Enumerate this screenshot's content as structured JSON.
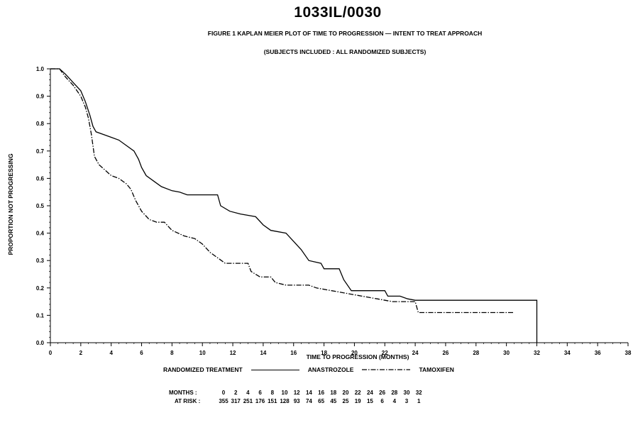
{
  "chart_data": {
    "type": "line",
    "title": "1033IL/0030",
    "subtitle": "FIGURE 1  KAPLAN MEIER PLOT OF TIME TO PROGRESSION  —  INTENT TO TREAT APPROACH",
    "subtitle2": "(SUBJECTS INCLUDED : ALL RANDOMIZED SUBJECTS)",
    "xlabel": "TIME TO PROGRESSION (MONTHS)",
    "ylabel": "PROPORTION NOT PROGRESSING",
    "xlim": [
      0,
      38
    ],
    "ylim": [
      0.0,
      1.0
    ],
    "x_ticks": [
      "0",
      "2",
      "4",
      "6",
      "8",
      "10",
      "12",
      "14",
      "16",
      "18",
      "20",
      "22",
      "24",
      "26",
      "28",
      "30",
      "32",
      "34",
      "36",
      "38"
    ],
    "y_ticks": [
      "0.0",
      "0.1",
      "0.2",
      "0.3",
      "0.4",
      "0.5",
      "0.6",
      "0.7",
      "0.8",
      "0.9",
      "1.0"
    ],
    "legend_title": "RANDOMIZED TREATMENT",
    "series": [
      {
        "name": "ANASTROZOLE",
        "line_style": "solid",
        "color": "#000000",
        "points": [
          [
            0,
            1.0
          ],
          [
            0.6,
            1.0
          ],
          [
            1.0,
            0.98
          ],
          [
            1.5,
            0.95
          ],
          [
            2.0,
            0.92
          ],
          [
            2.3,
            0.88
          ],
          [
            2.6,
            0.83
          ],
          [
            2.8,
            0.79
          ],
          [
            3.0,
            0.77
          ],
          [
            3.5,
            0.76
          ],
          [
            4.0,
            0.75
          ],
          [
            4.5,
            0.74
          ],
          [
            5.0,
            0.72
          ],
          [
            5.5,
            0.7
          ],
          [
            5.8,
            0.67
          ],
          [
            6.0,
            0.64
          ],
          [
            6.3,
            0.61
          ],
          [
            6.8,
            0.59
          ],
          [
            7.3,
            0.57
          ],
          [
            8.0,
            0.555
          ],
          [
            8.5,
            0.55
          ],
          [
            9.0,
            0.54
          ],
          [
            10.0,
            0.54
          ],
          [
            11.0,
            0.54
          ],
          [
            11.2,
            0.5
          ],
          [
            11.8,
            0.48
          ],
          [
            12.5,
            0.47
          ],
          [
            13.5,
            0.46
          ],
          [
            14.0,
            0.43
          ],
          [
            14.5,
            0.41
          ],
          [
            15.5,
            0.4
          ],
          [
            16.0,
            0.37
          ],
          [
            16.5,
            0.34
          ],
          [
            17.0,
            0.3
          ],
          [
            17.8,
            0.29
          ],
          [
            18.0,
            0.27
          ],
          [
            19.0,
            0.27
          ],
          [
            19.3,
            0.23
          ],
          [
            19.8,
            0.19
          ],
          [
            20.5,
            0.19
          ],
          [
            22.0,
            0.19
          ],
          [
            22.2,
            0.17
          ],
          [
            23.0,
            0.17
          ],
          [
            23.5,
            0.16
          ],
          [
            24.0,
            0.155
          ],
          [
            25.0,
            0.155
          ],
          [
            32.0,
            0.155
          ],
          [
            32.0,
            0.0
          ]
        ]
      },
      {
        "name": "TAMOXIFEN",
        "line_style": "dash-dot",
        "color": "#000000",
        "points": [
          [
            0,
            1.0
          ],
          [
            0.6,
            1.0
          ],
          [
            1.0,
            0.97
          ],
          [
            1.5,
            0.94
          ],
          [
            2.0,
            0.9
          ],
          [
            2.3,
            0.86
          ],
          [
            2.5,
            0.82
          ],
          [
            2.7,
            0.76
          ],
          [
            2.9,
            0.68
          ],
          [
            3.2,
            0.65
          ],
          [
            3.6,
            0.63
          ],
          [
            4.0,
            0.61
          ],
          [
            4.5,
            0.6
          ],
          [
            5.0,
            0.58
          ],
          [
            5.3,
            0.56
          ],
          [
            5.6,
            0.52
          ],
          [
            6.0,
            0.48
          ],
          [
            6.5,
            0.45
          ],
          [
            7.0,
            0.44
          ],
          [
            7.5,
            0.44
          ],
          [
            8.0,
            0.41
          ],
          [
            8.8,
            0.39
          ],
          [
            9.5,
            0.38
          ],
          [
            10.0,
            0.36
          ],
          [
            10.5,
            0.33
          ],
          [
            11.0,
            0.31
          ],
          [
            11.5,
            0.29
          ],
          [
            12.0,
            0.29
          ],
          [
            13.0,
            0.29
          ],
          [
            13.2,
            0.26
          ],
          [
            13.8,
            0.24
          ],
          [
            14.5,
            0.24
          ],
          [
            14.8,
            0.22
          ],
          [
            15.5,
            0.21
          ],
          [
            16.0,
            0.21
          ],
          [
            17.0,
            0.21
          ],
          [
            17.5,
            0.2
          ],
          [
            18.5,
            0.19
          ],
          [
            19.5,
            0.18
          ],
          [
            20.5,
            0.17
          ],
          [
            21.5,
            0.16
          ],
          [
            22.5,
            0.15
          ],
          [
            24.0,
            0.15
          ],
          [
            24.2,
            0.11
          ],
          [
            26.0,
            0.11
          ],
          [
            30.5,
            0.11
          ]
        ]
      }
    ],
    "at_risk": {
      "months_label": "MONTHS",
      "at_risk_label": "AT RISK",
      "months": [
        "0",
        "2",
        "4",
        "6",
        "8",
        "10",
        "12",
        "14",
        "16",
        "18",
        "20",
        "22",
        "24",
        "26",
        "28",
        "30",
        "32"
      ],
      "counts": [
        "355",
        "317",
        "251",
        "176",
        "151",
        "128",
        "93",
        "74",
        "65",
        "45",
        "25",
        "19",
        "15",
        "6",
        "4",
        "3",
        "1"
      ]
    }
  }
}
